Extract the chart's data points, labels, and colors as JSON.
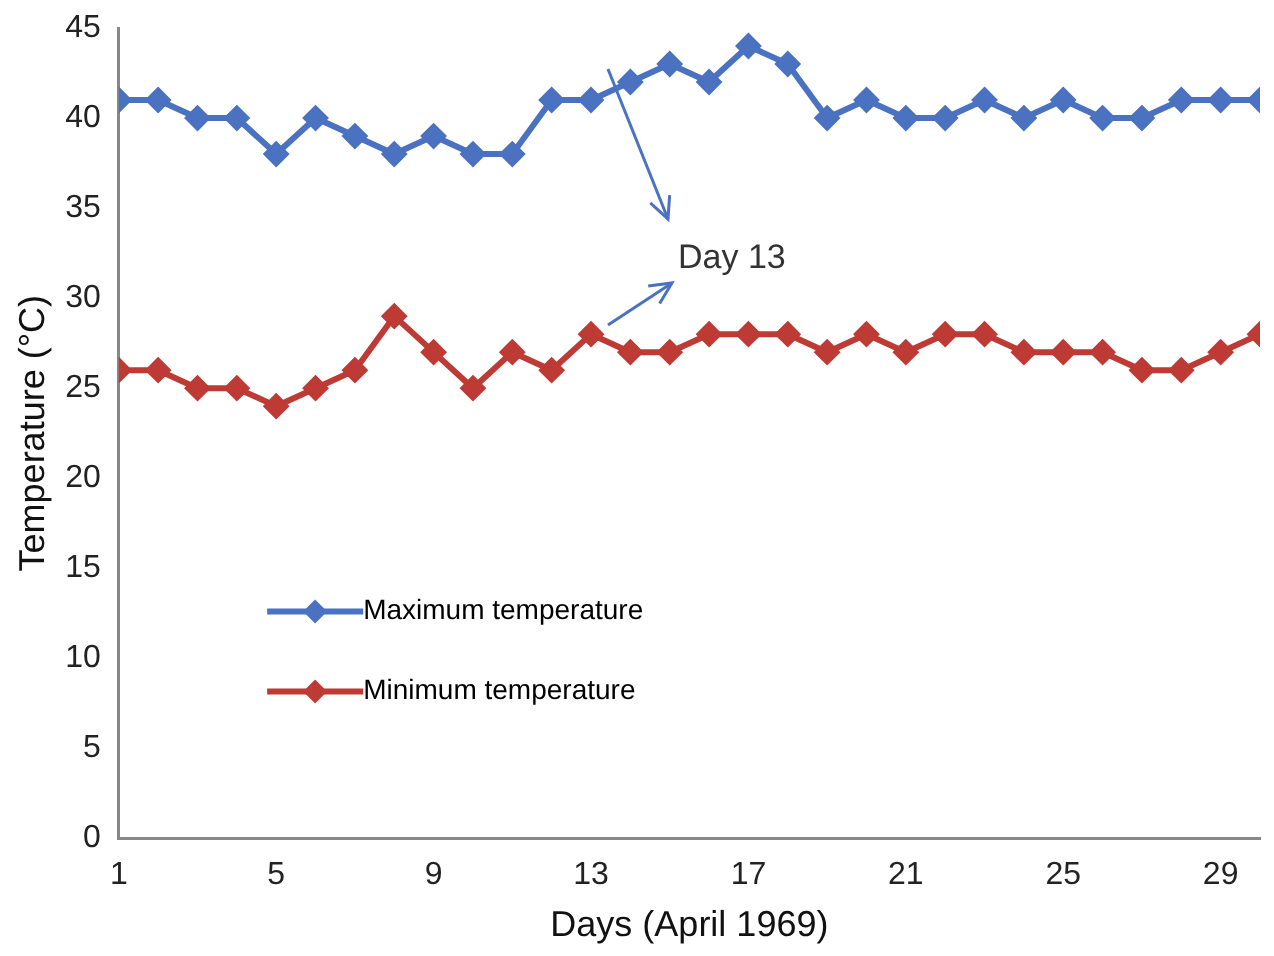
{
  "chart_data": {
    "type": "line",
    "xlabel": "Days (April 1969)",
    "ylabel": "Temperature (°C)",
    "x": [
      1,
      2,
      3,
      4,
      5,
      6,
      7,
      8,
      9,
      10,
      11,
      12,
      13,
      14,
      15,
      16,
      17,
      18,
      19,
      20,
      21,
      22,
      23,
      24,
      25,
      26,
      27,
      28,
      29,
      30
    ],
    "series": [
      {
        "name": "Maximum temperature",
        "color": "#4a72c0",
        "values": [
          41,
          41,
          40,
          40,
          38,
          40,
          39,
          38,
          39,
          38,
          38,
          41,
          41,
          42,
          43,
          42,
          44,
          43,
          40,
          41,
          40,
          40,
          41,
          40,
          41,
          40,
          40,
          41,
          41,
          41
        ]
      },
      {
        "name": "Minimum temperature",
        "color": "#be3a34",
        "values": [
          26,
          26,
          25,
          25,
          24,
          25,
          26,
          29,
          27,
          25,
          27,
          26,
          28,
          27,
          27,
          28,
          28,
          28,
          27,
          28,
          27,
          28,
          28,
          27,
          27,
          27,
          26,
          26,
          27,
          28
        ]
      }
    ],
    "xlim": [
      1,
      30
    ],
    "xticks": [
      1,
      5,
      9,
      13,
      17,
      21,
      25,
      29
    ],
    "ylim": [
      0,
      45
    ],
    "yticks": [
      0,
      5,
      10,
      15,
      20,
      25,
      30,
      35,
      40,
      45
    ],
    "grid": false,
    "legend": "center left",
    "marker": "diamond",
    "line_style": "solid",
    "annotations": [
      "Day 13"
    ]
  }
}
